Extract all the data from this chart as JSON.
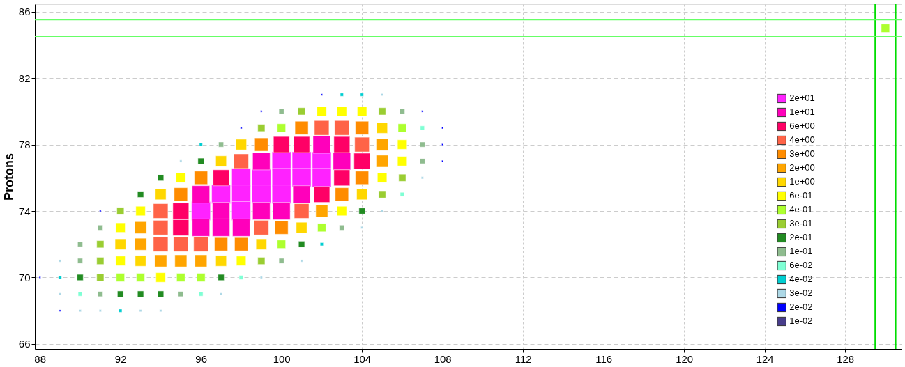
{
  "chart_data": {
    "type": "scatter",
    "ylabel": "Protons",
    "marker": "square",
    "grid": true,
    "legend": "right",
    "xlim": [
      87.75,
      130.8
    ],
    "ylim": [
      65.7,
      86.45
    ],
    "xticks": [
      88,
      92,
      96,
      100,
      104,
      108,
      112,
      116,
      120,
      124,
      128
    ],
    "yticks": [
      66,
      70,
      74,
      78,
      82,
      86
    ],
    "series": [
      {
        "name": "2e+01",
        "color": "#ff22ff",
        "x": [
          100,
          101,
          102,
          98,
          99,
          100,
          101,
          102,
          97,
          98,
          99,
          100,
          96,
          98
        ],
        "values": [
          77,
          77,
          77,
          76,
          76,
          76,
          76,
          76,
          75,
          75,
          75,
          75,
          74,
          74
        ]
      },
      {
        "name": "1e+01",
        "color": "#ff00bb",
        "x": [
          102,
          99,
          103,
          96,
          101,
          97,
          99,
          100,
          96,
          97,
          98
        ],
        "values": [
          78,
          77,
          77,
          75,
          75,
          74,
          74,
          74,
          73,
          73,
          73
        ]
      },
      {
        "name": "6e+00",
        "color": "#ff0066",
        "x": [
          100,
          101,
          103,
          104,
          97,
          103,
          102,
          95,
          95
        ],
        "values": [
          78,
          78,
          78,
          77,
          76,
          76,
          75,
          74,
          73
        ]
      },
      {
        "name": "4e+00",
        "color": "#ff6347",
        "x": [
          102,
          103,
          104,
          98,
          94,
          101,
          94,
          99,
          94,
          95,
          96
        ],
        "values": [
          79,
          79,
          78,
          77,
          74,
          74,
          73,
          73,
          72,
          72,
          72
        ]
      },
      {
        "name": "3e+00",
        "color": "#ff8c00",
        "x": [
          101,
          104,
          99,
          96,
          104,
          95,
          103,
          100,
          97,
          98
        ],
        "values": [
          79,
          79,
          78,
          76,
          76,
          75,
          75,
          73,
          72,
          72
        ]
      },
      {
        "name": "2e+00",
        "color": "#ffa500",
        "x": [
          105,
          105,
          102,
          93,
          93,
          94,
          95,
          96
        ],
        "values": [
          78,
          77,
          74,
          73,
          72,
          71,
          71,
          71
        ]
      },
      {
        "name": "1e+00",
        "color": "#ffd700",
        "x": [
          105,
          98,
          97,
          94,
          104,
          101,
          92,
          99,
          93,
          97
        ],
        "values": [
          79,
          78,
          77,
          75,
          75,
          73,
          72,
          72,
          71,
          71
        ]
      },
      {
        "name": "6e-01",
        "color": "#ffff00",
        "x": [
          102,
          103,
          104,
          106,
          106,
          95,
          105,
          93,
          103,
          92,
          92,
          98,
          94
        ],
        "values": [
          80,
          80,
          80,
          78,
          77,
          76,
          76,
          74,
          74,
          73,
          71,
          71,
          70
        ]
      },
      {
        "name": "4e-01",
        "color": "#adff2f",
        "x": [
          100,
          106,
          102,
          100,
          92,
          93,
          95,
          96,
          130
        ],
        "values": [
          79,
          79,
          73,
          72,
          70,
          70,
          70,
          70,
          85
        ]
      },
      {
        "name": "3e-01",
        "color": "#9acd32",
        "x": [
          101,
          105,
          99,
          106,
          105,
          92,
          91,
          91,
          99,
          91
        ],
        "values": [
          80,
          80,
          79,
          76,
          75,
          74,
          72,
          71,
          71,
          70
        ]
      },
      {
        "name": "2e-01",
        "color": "#228b22",
        "x": [
          96,
          94,
          93,
          104,
          101,
          90,
          97,
          92,
          93,
          94
        ],
        "values": [
          77,
          76,
          75,
          74,
          72,
          70,
          70,
          69,
          69,
          69
        ]
      },
      {
        "name": "1e-01",
        "color": "#8fbc8f",
        "x": [
          100,
          106,
          97,
          107,
          107,
          103,
          91,
          90,
          90,
          100,
          91,
          95
        ],
        "values": [
          80,
          80,
          78,
          78,
          77,
          73,
          73,
          72,
          71,
          71,
          69,
          69
        ]
      },
      {
        "name": "6e-02",
        "color": "#7fffd4",
        "x": [
          107,
          106,
          98,
          90,
          96
        ],
        "values": [
          79,
          75,
          70,
          69,
          69
        ]
      },
      {
        "name": "4e-02",
        "color": "#00ced1",
        "x": [
          103,
          104,
          96,
          102,
          89,
          92
        ],
        "values": [
          81,
          81,
          78,
          72,
          70,
          68
        ]
      },
      {
        "name": "3e-02",
        "color": "#add8e6",
        "x": [
          105,
          95,
          107,
          105,
          104,
          101,
          89,
          99,
          89,
          97,
          90,
          91,
          93,
          94
        ],
        "values": [
          81,
          77,
          76,
          74,
          73,
          71,
          71,
          70,
          69,
          69,
          68,
          68,
          68,
          68
        ]
      },
      {
        "name": "2e-02",
        "color": "#0000ff",
        "x": [
          102,
          99,
          107,
          98,
          108,
          108,
          108,
          91,
          88,
          89
        ],
        "values": [
          81,
          80,
          80,
          79,
          79,
          78,
          77,
          74,
          70,
          68
        ]
      },
      {
        "name": "1e-02",
        "color": "#483d8b"
      }
    ],
    "ref_lines": [
      {
        "axis": "x",
        "value": 129.5,
        "color": "#00dd00"
      },
      {
        "axis": "x",
        "value": 130.5,
        "color": "#00dd00"
      },
      {
        "axis": "y",
        "value": 84.5,
        "color": "#66ff66"
      },
      {
        "axis": "y",
        "value": 85.5,
        "color": "#66ff66"
      }
    ]
  }
}
